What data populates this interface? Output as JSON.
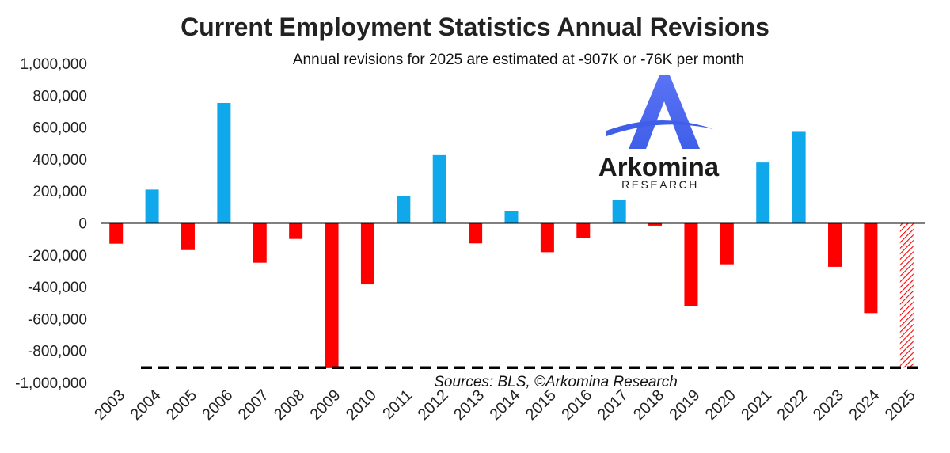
{
  "chart_data": {
    "type": "bar",
    "title": "Current Employment Statistics Annual Revisions",
    "subtitle": "Annual revisions for 2025 are estimated at -907K or -76K per month",
    "source": "Sources: BLS, ©Arkomina Research",
    "xlabel": "",
    "ylabel": "",
    "ylim": [
      -1000000,
      1000000
    ],
    "yticks": [
      1000000,
      800000,
      600000,
      400000,
      200000,
      0,
      -200000,
      -400000,
      -600000,
      -800000,
      -1000000
    ],
    "ytick_labels": [
      "1,000,000",
      "800,000",
      "600,000",
      "400,000",
      "200,000",
      "0",
      "-200,000",
      "-400,000",
      "-600,000",
      "-800,000",
      "-1,000,000"
    ],
    "categories": [
      "2003",
      "2004",
      "2005",
      "2006",
      "2007",
      "2008",
      "2009",
      "2010",
      "2011",
      "2012",
      "2013",
      "2014",
      "2015",
      "2016",
      "2017",
      "2018",
      "2019",
      "2020",
      "2021",
      "2022",
      "2023",
      "2024",
      "2025"
    ],
    "values": [
      -130000,
      209000,
      -170000,
      752000,
      -249000,
      -100000,
      -910000,
      -385000,
      168000,
      425000,
      -128000,
      72000,
      -183000,
      -93000,
      142000,
      -17000,
      -523000,
      -259000,
      379000,
      571000,
      -275000,
      -565000,
      -907000
    ],
    "estimated": [
      false,
      false,
      false,
      false,
      false,
      false,
      false,
      false,
      false,
      false,
      false,
      false,
      false,
      false,
      false,
      false,
      false,
      false,
      false,
      false,
      false,
      false,
      true
    ],
    "reference_line": {
      "value": -907000,
      "style": "dashed"
    },
    "colors": {
      "positive": "#0fa8ea",
      "negative": "#ff0000",
      "estimate": "#ff0000",
      "axis": "#000000"
    }
  },
  "logo": {
    "name": "Arkomina",
    "tagline": "RESEARCH",
    "colors": {
      "mark": "#4a6cf2",
      "text": "#1b1b1b"
    }
  }
}
